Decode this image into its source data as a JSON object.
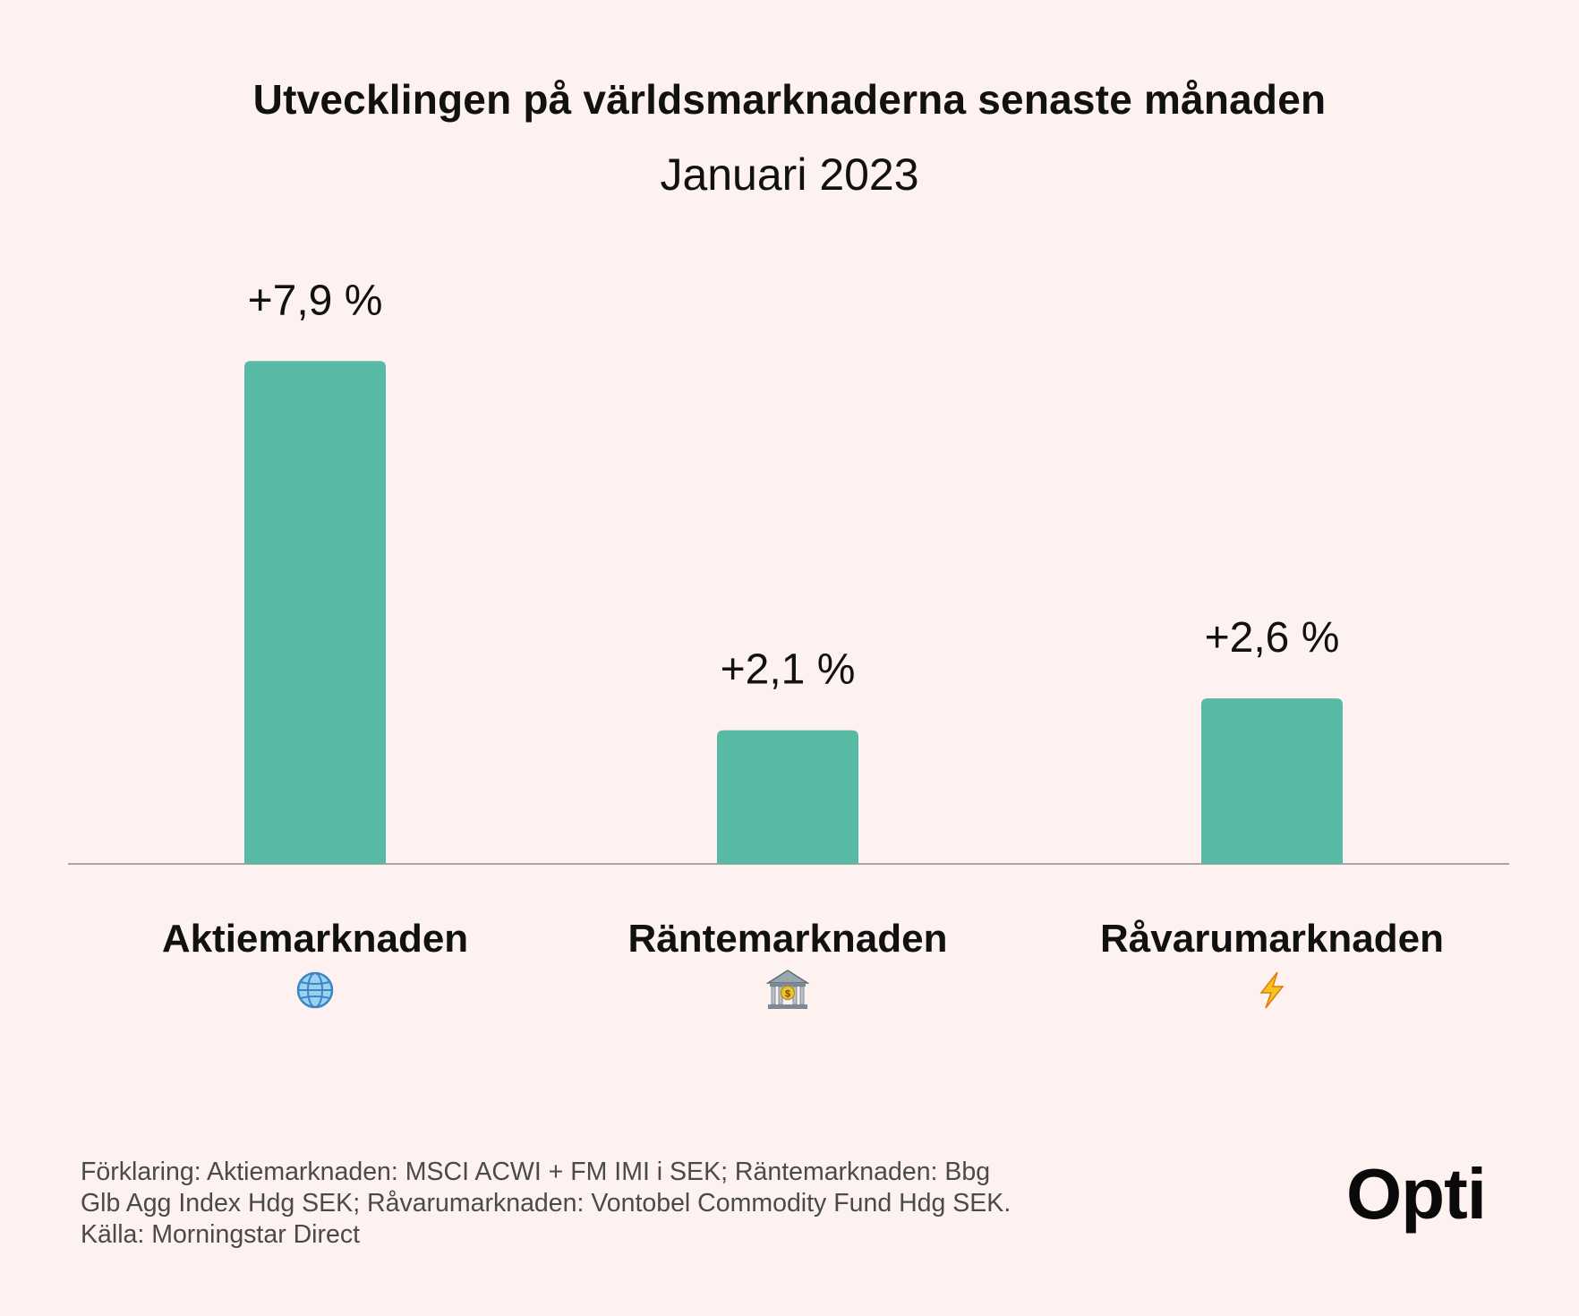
{
  "header": {
    "title": "Utvecklingen på världsmarknaderna senaste månaden",
    "subtitle": "Januari 2023"
  },
  "chart_data": {
    "type": "bar",
    "title": "Utvecklingen på världsmarknaderna senaste månaden",
    "subtitle": "Januari 2023",
    "categories": [
      "Aktiemarknaden",
      "Räntemarknaden",
      "Råvarumarknaden"
    ],
    "category_icons": [
      "globe-icon",
      "bank-icon",
      "lightning-icon"
    ],
    "values": [
      7.9,
      2.1,
      2.6
    ],
    "value_labels": [
      "+7,9 %",
      "+2,1 %",
      "+2,6 %"
    ],
    "unit": "%",
    "xlabel": "",
    "ylabel": "",
    "ylim": [
      0,
      10
    ],
    "grid": false,
    "bar_color": "#58b9a5"
  },
  "footnote": {
    "lines": [
      "Förklaring: Aktiemarknaden: MSCI ACWI + FM IMI i SEK; Räntemarknaden: Bbg",
      "Glb Agg Index Hdg SEK; Råvarumarknaden: Vontobel Commodity Fund Hdg SEK.",
      "Källa: Morningstar Direct"
    ]
  },
  "brand": {
    "logo_text": "Opti"
  }
}
